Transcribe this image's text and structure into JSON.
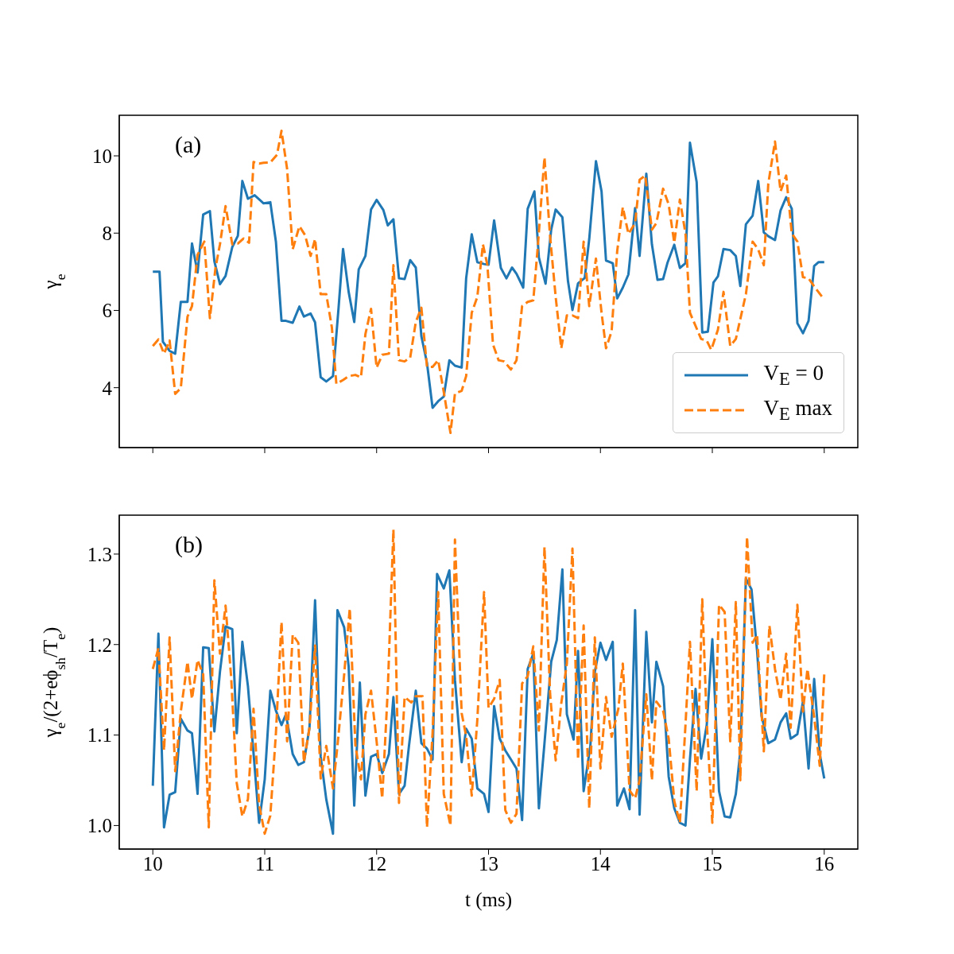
{
  "chart_data": [
    {
      "type": "line",
      "annotations": [
        "(a)"
      ],
      "ylabel": "γ$_{e}$",
      "xlim": [
        9.7,
        16.3
      ],
      "xticks": [
        10,
        11,
        12,
        13,
        14,
        15,
        16
      ],
      "ylim": [
        2.45,
        11.05
      ],
      "yticks": [
        4,
        6,
        8,
        10
      ],
      "tick_labels": "y",
      "legend": "bottom right",
      "series": [
        {
          "name": "V$_{E}$ = 0",
          "color": "#1f77b4",
          "line_style": "solid",
          "x": [
            10.0,
            10.06,
            10.09,
            10.15,
            10.2,
            10.25,
            10.31,
            10.35,
            10.4,
            10.45,
            10.51,
            10.55,
            10.6,
            10.65,
            10.71,
            10.76,
            10.8,
            10.85,
            10.91,
            10.99,
            11.05,
            11.1,
            11.15,
            11.19,
            11.25,
            11.31,
            11.35,
            11.41,
            11.45,
            11.5,
            11.55,
            11.61,
            11.66,
            11.7,
            11.75,
            11.8,
            11.84,
            11.9,
            11.95,
            12.0,
            12.06,
            12.1,
            12.15,
            12.2,
            12.25,
            12.3,
            12.35,
            12.4,
            12.45,
            12.5,
            12.55,
            12.6,
            12.65,
            12.7,
            12.76,
            12.8,
            12.85,
            12.9,
            12.96,
            13.0,
            13.05,
            13.11,
            13.16,
            13.21,
            13.25,
            13.31,
            13.35,
            13.41,
            13.45,
            13.51,
            13.56,
            13.6,
            13.66,
            13.71,
            13.75,
            13.8,
            13.86,
            13.9,
            13.96,
            14.01,
            14.05,
            14.11,
            14.15,
            14.2,
            14.25,
            14.31,
            14.35,
            14.41,
            14.46,
            14.51,
            14.56,
            14.6,
            14.66,
            14.71,
            14.76,
            14.8,
            14.86,
            14.91,
            14.96,
            15.01,
            15.05,
            15.1,
            15.16,
            15.21,
            15.25,
            15.3,
            15.36,
            15.41,
            15.46,
            15.5,
            15.56,
            15.61,
            15.66,
            15.71,
            15.76,
            15.81,
            15.86,
            15.91,
            15.95,
            16.0
          ],
          "values": [
            7.0,
            7.0,
            5.19,
            4.95,
            4.88,
            6.22,
            6.22,
            7.73,
            6.98,
            8.48,
            8.57,
            7.27,
            6.68,
            6.89,
            7.64,
            7.93,
            9.35,
            8.89,
            8.98,
            8.77,
            8.8,
            7.78,
            5.73,
            5.73,
            5.68,
            6.1,
            5.84,
            5.92,
            5.69,
            4.27,
            4.16,
            4.3,
            6.07,
            7.59,
            6.48,
            5.7,
            7.06,
            7.41,
            8.61,
            8.86,
            8.6,
            8.2,
            8.36,
            6.83,
            6.81,
            7.3,
            7.11,
            5.33,
            4.64,
            3.48,
            3.65,
            3.77,
            4.71,
            4.57,
            4.52,
            6.83,
            7.97,
            7.25,
            7.2,
            7.18,
            8.33,
            7.1,
            6.83,
            7.11,
            6.95,
            6.59,
            8.63,
            9.08,
            7.37,
            6.69,
            8.09,
            8.61,
            8.41,
            6.76,
            6.01,
            6.7,
            6.84,
            7.85,
            9.86,
            9.08,
            7.29,
            7.22,
            6.31,
            6.59,
            6.93,
            8.65,
            7.41,
            9.54,
            7.71,
            6.79,
            6.81,
            7.24,
            7.7,
            7.1,
            7.22,
            10.34,
            9.32,
            5.43,
            5.45,
            6.72,
            6.88,
            7.59,
            7.56,
            7.41,
            6.63,
            8.23,
            8.45,
            9.35,
            8.02,
            7.92,
            7.82,
            8.59,
            8.93,
            8.63,
            5.67,
            5.41,
            5.73,
            7.15,
            7.25,
            7.25
          ]
        },
        {
          "name": "V$_{E}$ max",
          "color": "#ff7f0e",
          "line_style": "dashed",
          "x": [
            10.0,
            10.05,
            10.1,
            10.15,
            10.2,
            10.25,
            10.31,
            10.35,
            10.4,
            10.46,
            10.51,
            10.56,
            10.6,
            10.65,
            10.71,
            10.76,
            10.81,
            10.86,
            10.9,
            10.95,
            10.99,
            11.05,
            11.11,
            11.15,
            11.2,
            11.25,
            11.31,
            11.36,
            11.41,
            11.45,
            11.5,
            11.55,
            11.6,
            11.64,
            11.7,
            11.75,
            11.81,
            11.86,
            11.9,
            11.95,
            12.0,
            12.05,
            12.11,
            12.15,
            12.2,
            12.25,
            12.3,
            12.35,
            12.4,
            12.45,
            12.5,
            12.55,
            12.6,
            12.66,
            12.7,
            12.76,
            12.8,
            12.85,
            12.9,
            12.95,
            12.99,
            13.04,
            13.09,
            13.14,
            13.2,
            13.25,
            13.3,
            13.35,
            13.4,
            13.44,
            13.5,
            13.55,
            13.6,
            13.65,
            13.7,
            13.75,
            13.8,
            13.85,
            13.9,
            13.96,
            14.01,
            14.05,
            14.1,
            14.15,
            14.2,
            14.25,
            14.31,
            14.35,
            14.4,
            14.46,
            14.5,
            14.56,
            14.61,
            14.66,
            14.71,
            14.76,
            14.8,
            14.9,
            14.95,
            14.99,
            15.05,
            15.1,
            15.16,
            15.21,
            15.3,
            15.36,
            15.41,
            15.46,
            15.5,
            15.56,
            15.61,
            15.66,
            15.71,
            15.76,
            15.81,
            15.86,
            15.91,
            16.0
          ],
          "values": [
            5.08,
            5.25,
            4.88,
            5.22,
            3.84,
            3.99,
            5.84,
            6.11,
            7.44,
            7.78,
            5.8,
            7.1,
            7.71,
            8.7,
            7.71,
            7.73,
            7.86,
            7.75,
            9.84,
            9.8,
            9.82,
            9.83,
            10.03,
            10.65,
            9.66,
            7.58,
            8.18,
            7.95,
            7.41,
            7.85,
            6.42,
            6.42,
            5.56,
            4.1,
            4.2,
            4.3,
            4.33,
            4.27,
            5.39,
            6.04,
            4.52,
            4.85,
            4.88,
            7.17,
            4.71,
            4.68,
            4.78,
            5.7,
            6.07,
            4.54,
            4.54,
            4.71,
            3.89,
            2.83,
            3.85,
            3.92,
            4.3,
            5.94,
            6.35,
            7.71,
            7.17,
            5.12,
            4.71,
            4.68,
            4.47,
            4.71,
            6.11,
            6.22,
            6.26,
            7.64,
            9.96,
            7.92,
            6.35,
            5.02,
            5.87,
            5.87,
            5.8,
            7.78,
            6.11,
            7.34,
            5.94,
            5.02,
            5.46,
            7.54,
            8.67,
            7.98,
            8.26,
            9.38,
            9.49,
            8.09,
            8.26,
            9.15,
            8.74,
            7.75,
            8.87,
            7.99,
            5.94,
            5.26,
            5.22,
            4.98,
            5.5,
            6.48,
            5.08,
            5.26,
            6.42,
            7.78,
            7.58,
            7.17,
            9.28,
            10.37,
            9.08,
            9.49,
            7.99,
            7.78,
            6.86,
            6.83,
            6.62,
            6.28
          ]
        }
      ]
    },
    {
      "type": "line",
      "annotations": [
        "(b)"
      ],
      "xlabel": "t (ms)",
      "ylabel": "γ$_{e}$/(2+eϕ$_{sh}$/T$_{e}$)",
      "xlim": [
        9.7,
        16.3
      ],
      "xticks": [
        10,
        11,
        12,
        13,
        14,
        15,
        16
      ],
      "ylim": [
        0.974,
        1.343
      ],
      "yticks": [
        {
          "value": 1,
          "label": "1.0"
        },
        {
          "value": 1.1,
          "label": "1.1"
        },
        {
          "value": 1.2,
          "label": "1.2"
        },
        {
          "value": 1.3,
          "label": "1.3"
        }
      ],
      "series": [
        {
          "color": "#1f77b4",
          "line_style": "solid",
          "x": [
            10.0,
            10.05,
            10.1,
            10.15,
            10.2,
            10.25,
            10.31,
            10.35,
            10.4,
            10.45,
            10.5,
            10.55,
            10.6,
            10.65,
            10.71,
            10.75,
            10.8,
            10.85,
            10.9,
            10.95,
            11.0,
            11.05,
            11.1,
            11.15,
            11.19,
            11.25,
            11.3,
            11.35,
            11.4,
            11.45,
            11.5,
            11.55,
            11.61,
            11.65,
            11.71,
            11.75,
            11.8,
            11.85,
            11.9,
            11.95,
            12.0,
            12.05,
            12.11,
            12.15,
            12.2,
            12.25,
            12.29,
            12.35,
            12.4,
            12.45,
            12.5,
            12.54,
            12.6,
            12.65,
            12.7,
            12.76,
            12.8,
            12.85,
            12.9,
            12.96,
            13.0,
            13.05,
            13.1,
            13.15,
            13.2,
            13.25,
            13.3,
            13.35,
            13.4,
            13.45,
            13.5,
            13.56,
            13.61,
            13.66,
            13.7,
            13.76,
            13.8,
            13.85,
            13.91,
            13.95,
            14.0,
            14.05,
            14.11,
            14.15,
            14.21,
            14.26,
            14.31,
            14.35,
            14.41,
            14.46,
            14.5,
            14.56,
            14.61,
            14.66,
            14.71,
            14.76,
            14.8,
            14.85,
            14.9,
            14.95,
            15.0,
            15.06,
            15.11,
            15.16,
            15.21,
            15.25,
            15.3,
            15.35,
            15.4,
            15.44,
            15.5,
            15.56,
            15.61,
            15.66,
            15.7,
            15.76,
            15.81,
            15.86,
            15.91,
            15.96,
            16.0
          ],
          "values": [
            1.044,
            1.212,
            0.998,
            1.034,
            1.037,
            1.118,
            1.105,
            1.102,
            1.035,
            1.197,
            1.196,
            1.104,
            1.17,
            1.22,
            1.217,
            1.102,
            1.203,
            1.154,
            1.08,
            1.003,
            1.051,
            1.149,
            1.127,
            1.111,
            1.123,
            1.079,
            1.067,
            1.07,
            1.108,
            1.249,
            1.076,
            1.029,
            0.991,
            1.238,
            1.219,
            1.176,
            1.022,
            1.158,
            1.033,
            1.076,
            1.079,
            1.058,
            1.079,
            1.142,
            1.035,
            1.044,
            1.089,
            1.149,
            1.091,
            1.085,
            1.073,
            1.278,
            1.262,
            1.282,
            1.161,
            1.07,
            1.107,
            1.096,
            1.041,
            1.035,
            1.015,
            1.132,
            1.096,
            1.083,
            1.073,
            1.063,
            1.006,
            1.173,
            1.19,
            1.019,
            1.091,
            1.181,
            1.205,
            1.283,
            1.123,
            1.095,
            1.193,
            1.038,
            1.088,
            1.17,
            1.202,
            1.183,
            1.203,
            1.022,
            1.041,
            1.018,
            1.238,
            1.012,
            1.214,
            1.114,
            1.181,
            1.154,
            1.054,
            1.019,
            1.003,
            1.0,
            1.073,
            1.151,
            1.074,
            1.111,
            1.206,
            1.038,
            1.01,
            1.009,
            1.035,
            1.082,
            1.273,
            1.261,
            1.193,
            1.121,
            1.091,
            1.095,
            1.114,
            1.124,
            1.096,
            1.101,
            1.137,
            1.063,
            1.162,
            1.079,
            1.052
          ]
        },
        {
          "color": "#ff7f0e",
          "line_style": "dashed",
          "x": [
            10.0,
            10.05,
            10.1,
            10.15,
            10.2,
            10.25,
            10.31,
            10.35,
            10.4,
            10.45,
            10.5,
            10.55,
            10.6,
            10.65,
            10.7,
            10.75,
            10.8,
            10.85,
            10.9,
            10.95,
            11.0,
            11.05,
            11.1,
            11.15,
            11.2,
            11.25,
            11.3,
            11.35,
            11.4,
            11.45,
            11.5,
            11.55,
            11.61,
            11.65,
            11.71,
            11.76,
            11.81,
            11.86,
            11.9,
            11.95,
            12.0,
            12.05,
            12.1,
            12.15,
            12.2,
            12.25,
            12.31,
            12.35,
            12.41,
            12.45,
            12.5,
            12.55,
            12.6,
            12.66,
            12.7,
            12.76,
            12.8,
            12.85,
            12.9,
            12.96,
            13.0,
            13.05,
            13.1,
            13.15,
            13.2,
            13.25,
            13.3,
            13.35,
            13.4,
            13.45,
            13.5,
            13.55,
            13.6,
            13.65,
            13.7,
            13.75,
            13.8,
            13.85,
            13.9,
            13.95,
            14.0,
            14.05,
            14.1,
            14.16,
            14.2,
            14.26,
            14.31,
            14.35,
            14.41,
            14.46,
            14.5,
            14.56,
            14.61,
            14.66,
            14.71,
            14.76,
            14.8,
            14.86,
            14.91,
            14.95,
            15.0,
            15.06,
            15.11,
            15.16,
            15.21,
            15.25,
            15.31,
            15.36,
            15.4,
            15.46,
            15.51,
            15.56,
            15.61,
            15.66,
            15.7,
            15.76,
            15.81,
            15.85,
            15.91,
            15.96,
            16.0
          ],
          "values": [
            1.173,
            1.196,
            1.083,
            1.208,
            1.06,
            1.126,
            1.181,
            1.14,
            1.183,
            1.167,
            0.998,
            1.271,
            1.19,
            1.243,
            1.164,
            1.047,
            1.01,
            1.029,
            1.129,
            1.023,
            0.991,
            1.011,
            1.102,
            1.225,
            1.093,
            1.211,
            1.202,
            1.07,
            1.108,
            1.199,
            1.052,
            1.088,
            1.041,
            1.088,
            1.167,
            1.24,
            1.089,
            1.051,
            1.123,
            1.149,
            1.093,
            1.03,
            1.151,
            1.327,
            1.025,
            1.142,
            1.136,
            1.143,
            1.143,
            0.998,
            1.102,
            1.258,
            1.035,
            1.0,
            1.316,
            1.124,
            1.099,
            1.033,
            1.117,
            1.258,
            1.13,
            1.14,
            1.161,
            1.017,
            1.003,
            1.013,
            1.157,
            1.165,
            1.198,
            1.105,
            1.308,
            1.146,
            1.072,
            1.135,
            1.179,
            1.306,
            1.073,
            1.221,
            1.019,
            1.208,
            1.063,
            1.142,
            1.098,
            1.129,
            1.179,
            1.039,
            1.03,
            1.05,
            1.145,
            1.05,
            1.137,
            1.127,
            1.096,
            1.027,
            1.003,
            1.111,
            1.203,
            1.038,
            1.25,
            1.115,
            1.003,
            1.244,
            1.236,
            1.093,
            1.247,
            1.05,
            1.319,
            1.202,
            1.211,
            1.082,
            1.221,
            1.173,
            1.139,
            1.19,
            1.108,
            1.244,
            1.126,
            1.173,
            1.12,
            1.066,
            1.167
          ]
        }
      ]
    }
  ]
}
